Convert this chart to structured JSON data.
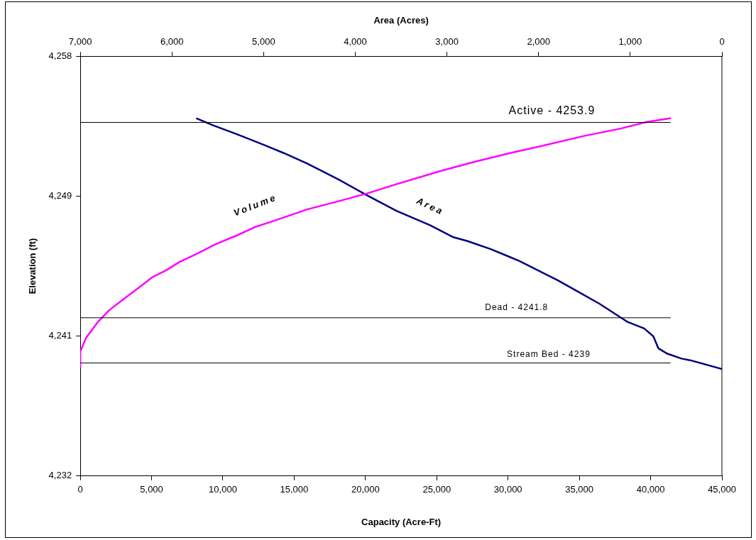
{
  "chart_data": {
    "type": "line",
    "xlabel": "Capacity (Acre-Ft)",
    "x2label": "Area (Acres)",
    "ylabel": "Elevation (ft)",
    "xlim": [
      0,
      45000
    ],
    "xticks": [
      0,
      {
        "value": 5000,
        "label": "5,000"
      },
      {
        "value": 10000,
        "label": "10,000"
      },
      {
        "value": 15000,
        "label": "15,000"
      },
      {
        "value": 20000,
        "label": "20,000"
      },
      {
        "value": 25000,
        "label": "25,000"
      },
      {
        "value": 30000,
        "label": "30,000"
      },
      {
        "value": 35000,
        "label": "35,000"
      },
      {
        "value": 40000,
        "label": "40,000"
      },
      {
        "value": 45000,
        "label": "45,000"
      }
    ],
    "x2lim": [
      7000,
      0
    ],
    "x2ticks": [
      {
        "value": 7000,
        "label": "7,000"
      },
      {
        "value": 6000,
        "label": "6,000"
      },
      {
        "value": 5000,
        "label": "5,000"
      },
      {
        "value": 4000,
        "label": "4,000"
      },
      {
        "value": 3000,
        "label": "3,000"
      },
      {
        "value": 2000,
        "label": "2,000"
      },
      {
        "value": 1000,
        "label": "1,000"
      },
      0
    ],
    "ylim": [
      4232,
      4258
    ],
    "yticks": [
      {
        "value": 4232,
        "label": "4,232"
      },
      {
        "value": 4240.667,
        "label": "4,241"
      },
      {
        "value": 4249.333,
        "label": "4,249"
      },
      {
        "value": 4258,
        "label": "4,258"
      }
    ],
    "series": [
      {
        "name": "Volume",
        "color": "#ff00ff",
        "x": [
          0,
          0,
          396,
          1224,
          2032,
          2973,
          4212,
          5005,
          5996,
          6987,
          8176,
          9465,
          10951,
          12289,
          13627,
          15907,
          18236,
          20069,
          22200,
          25173,
          27651,
          30129,
          32607,
          35431,
          37909,
          39693,
          41427
        ],
        "values": [
          4238.7,
          4239.7,
          4240.55,
          4241.53,
          4242.27,
          4242.91,
          4243.74,
          4244.29,
          4244.73,
          4245.27,
          4245.76,
          4246.35,
          4246.89,
          4247.43,
          4247.82,
          4248.51,
          4249.05,
          4249.49,
          4250.08,
          4250.87,
          4251.46,
          4252.0,
          4252.49,
          4253.08,
          4253.52,
          4253.92,
          4254.16
        ]
      },
      {
        "name": "Area",
        "color": "#000080",
        "axis": "x2",
        "x": [
          5736,
          5551,
          5297,
          4988,
          4780,
          4526,
          4187,
          3878,
          3547,
          3184,
          2930,
          2776,
          2521,
          2313,
          2213,
          2005,
          1797,
          1596,
          1334,
          1026,
          848,
          748,
          694,
          594,
          440,
          347,
          0
        ],
        "values": [
          4254.16,
          4253.72,
          4253.18,
          4252.49,
          4252.0,
          4251.36,
          4250.38,
          4249.4,
          4248.41,
          4247.53,
          4246.79,
          4246.55,
          4246.05,
          4245.56,
          4245.32,
          4244.73,
          4244.14,
          4243.5,
          4242.66,
          4241.53,
          4241.14,
          4240.65,
          4239.91,
          4239.57,
          4239.27,
          4239.17,
          4238.63
        ]
      }
    ],
    "ref_lines": [
      {
        "axis": "y",
        "value": 4253.9,
        "label": "Active - 4253.9",
        "color": "#000000"
      },
      {
        "axis": "y",
        "value": 4241.8,
        "label": "Dead - 4241.8",
        "color": "#000000"
      },
      {
        "axis": "y",
        "value": 4239,
        "label": "Stream Bed - 4239",
        "color": "#000000"
      }
    ],
    "grid": false,
    "legend": false,
    "marker": "none",
    "line_style": "solid"
  }
}
